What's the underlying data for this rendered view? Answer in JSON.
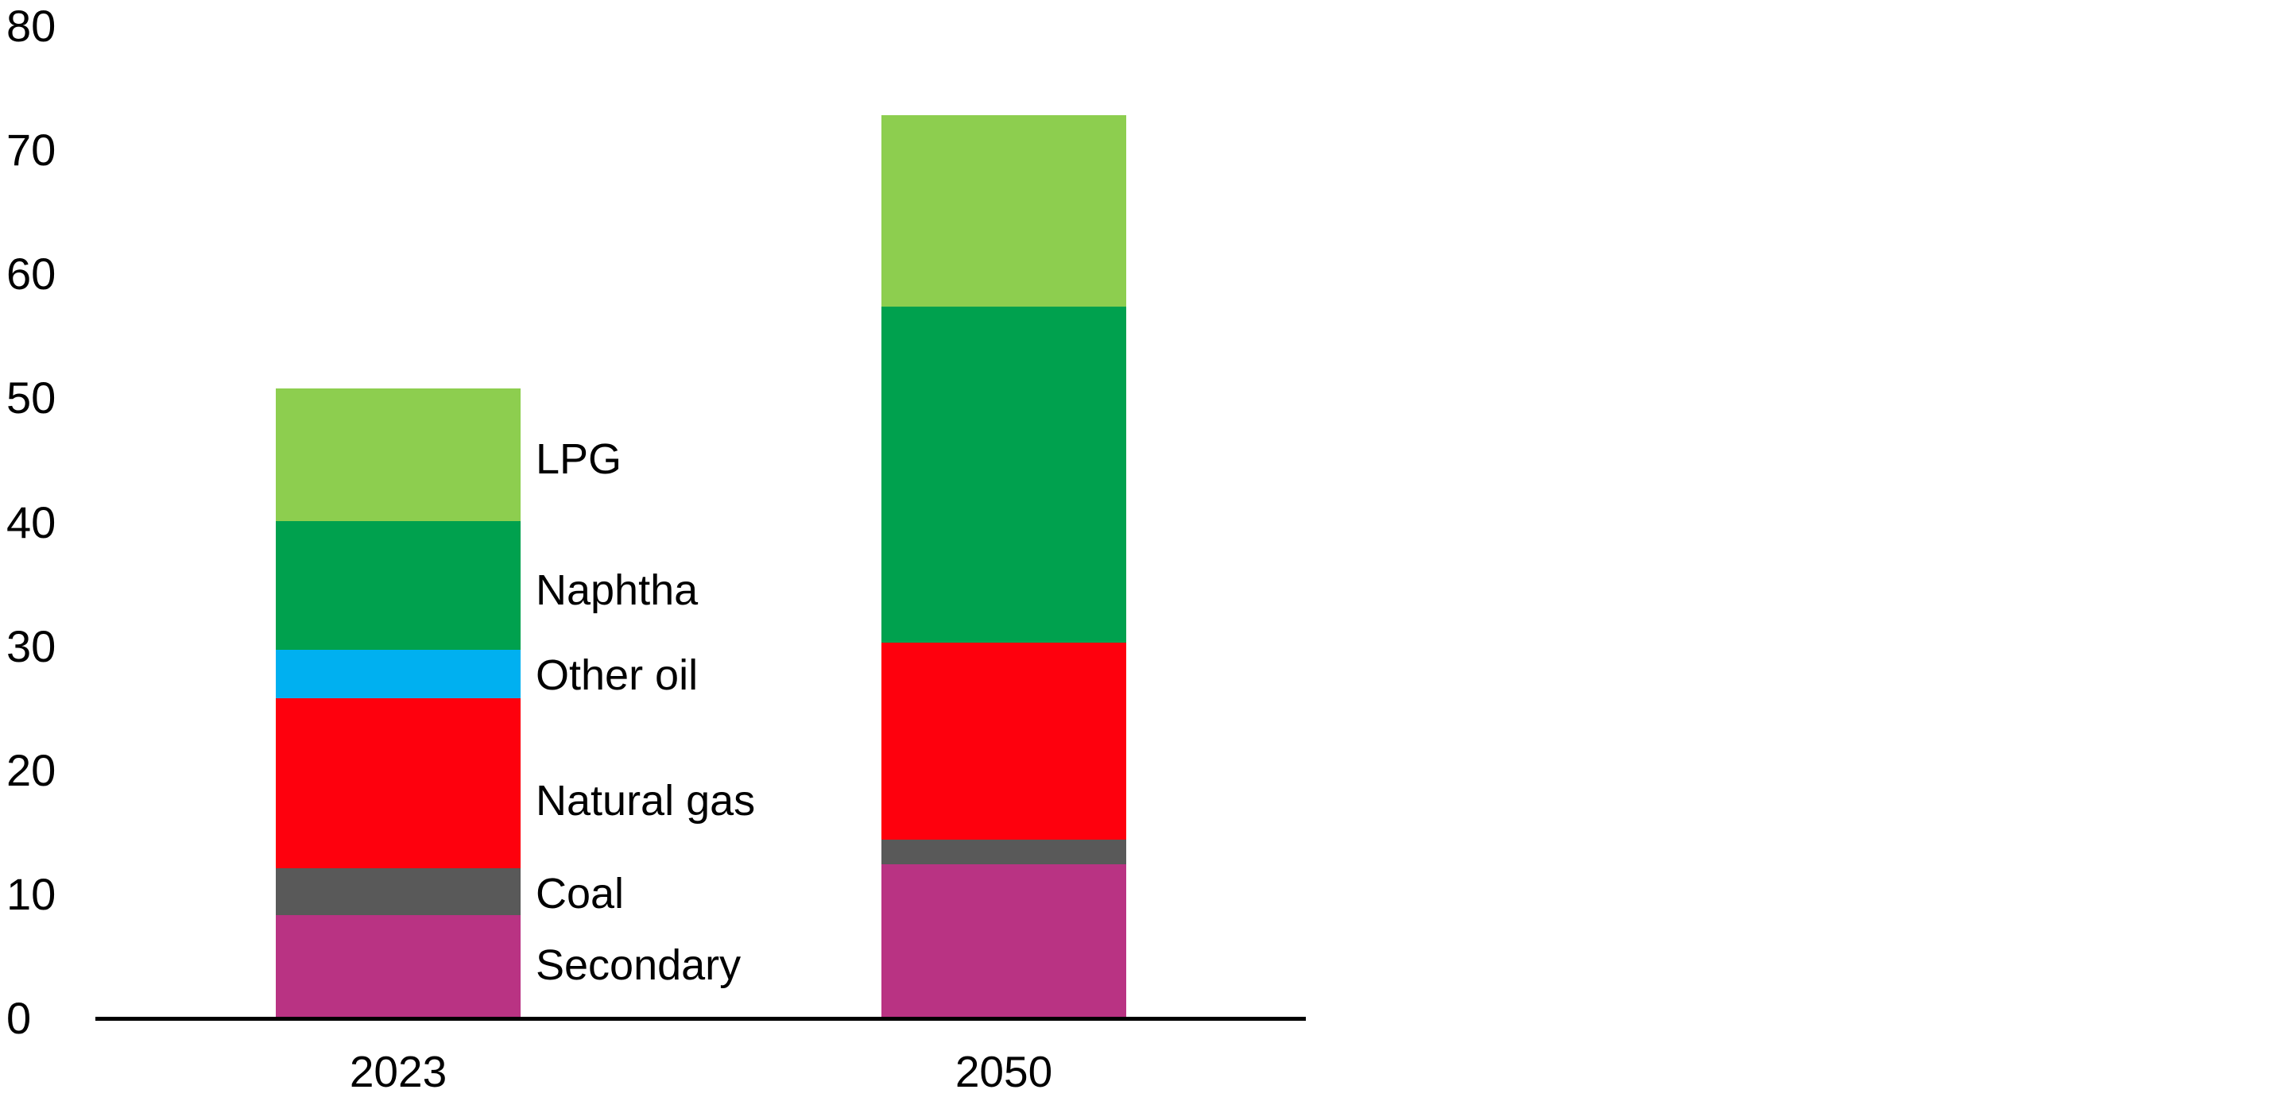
{
  "chart_data": {
    "type": "bar",
    "stacked": true,
    "title": "",
    "xlabel": "",
    "ylabel": "",
    "categories": [
      "2023",
      "2050"
    ],
    "series": [
      {
        "name": "Secondary",
        "color": "#B93383",
        "values": [
          8.3,
          12.4
        ]
      },
      {
        "name": "Coal",
        "color": "#595959",
        "values": [
          3.8,
          2.0
        ]
      },
      {
        "name": "Natural gas",
        "color": "#FE000D",
        "values": [
          13.7,
          15.9
        ]
      },
      {
        "name": "Other oil",
        "color": "#00B0F0",
        "values": [
          3.9,
          0
        ]
      },
      {
        "name": "Naphtha",
        "color": "#00A14E",
        "values": [
          10.4,
          27.1
        ]
      },
      {
        "name": "LPG",
        "color": "#8DCE4F",
        "values": [
          10.7,
          15.4
        ]
      }
    ],
    "totals": [
      50.8,
      72.8
    ],
    "ylim": [
      0,
      80
    ],
    "yticks": [
      0,
      10,
      20,
      30,
      40,
      50,
      60,
      70,
      80
    ],
    "grid": false,
    "axis_color": "#000000",
    "legend_position": "labels-right-of-first-bar",
    "series_labels_top_to_bottom": [
      "LPG",
      "Naphtha",
      "Other oil",
      "Natural gas",
      "Coal",
      "Secondary"
    ]
  }
}
